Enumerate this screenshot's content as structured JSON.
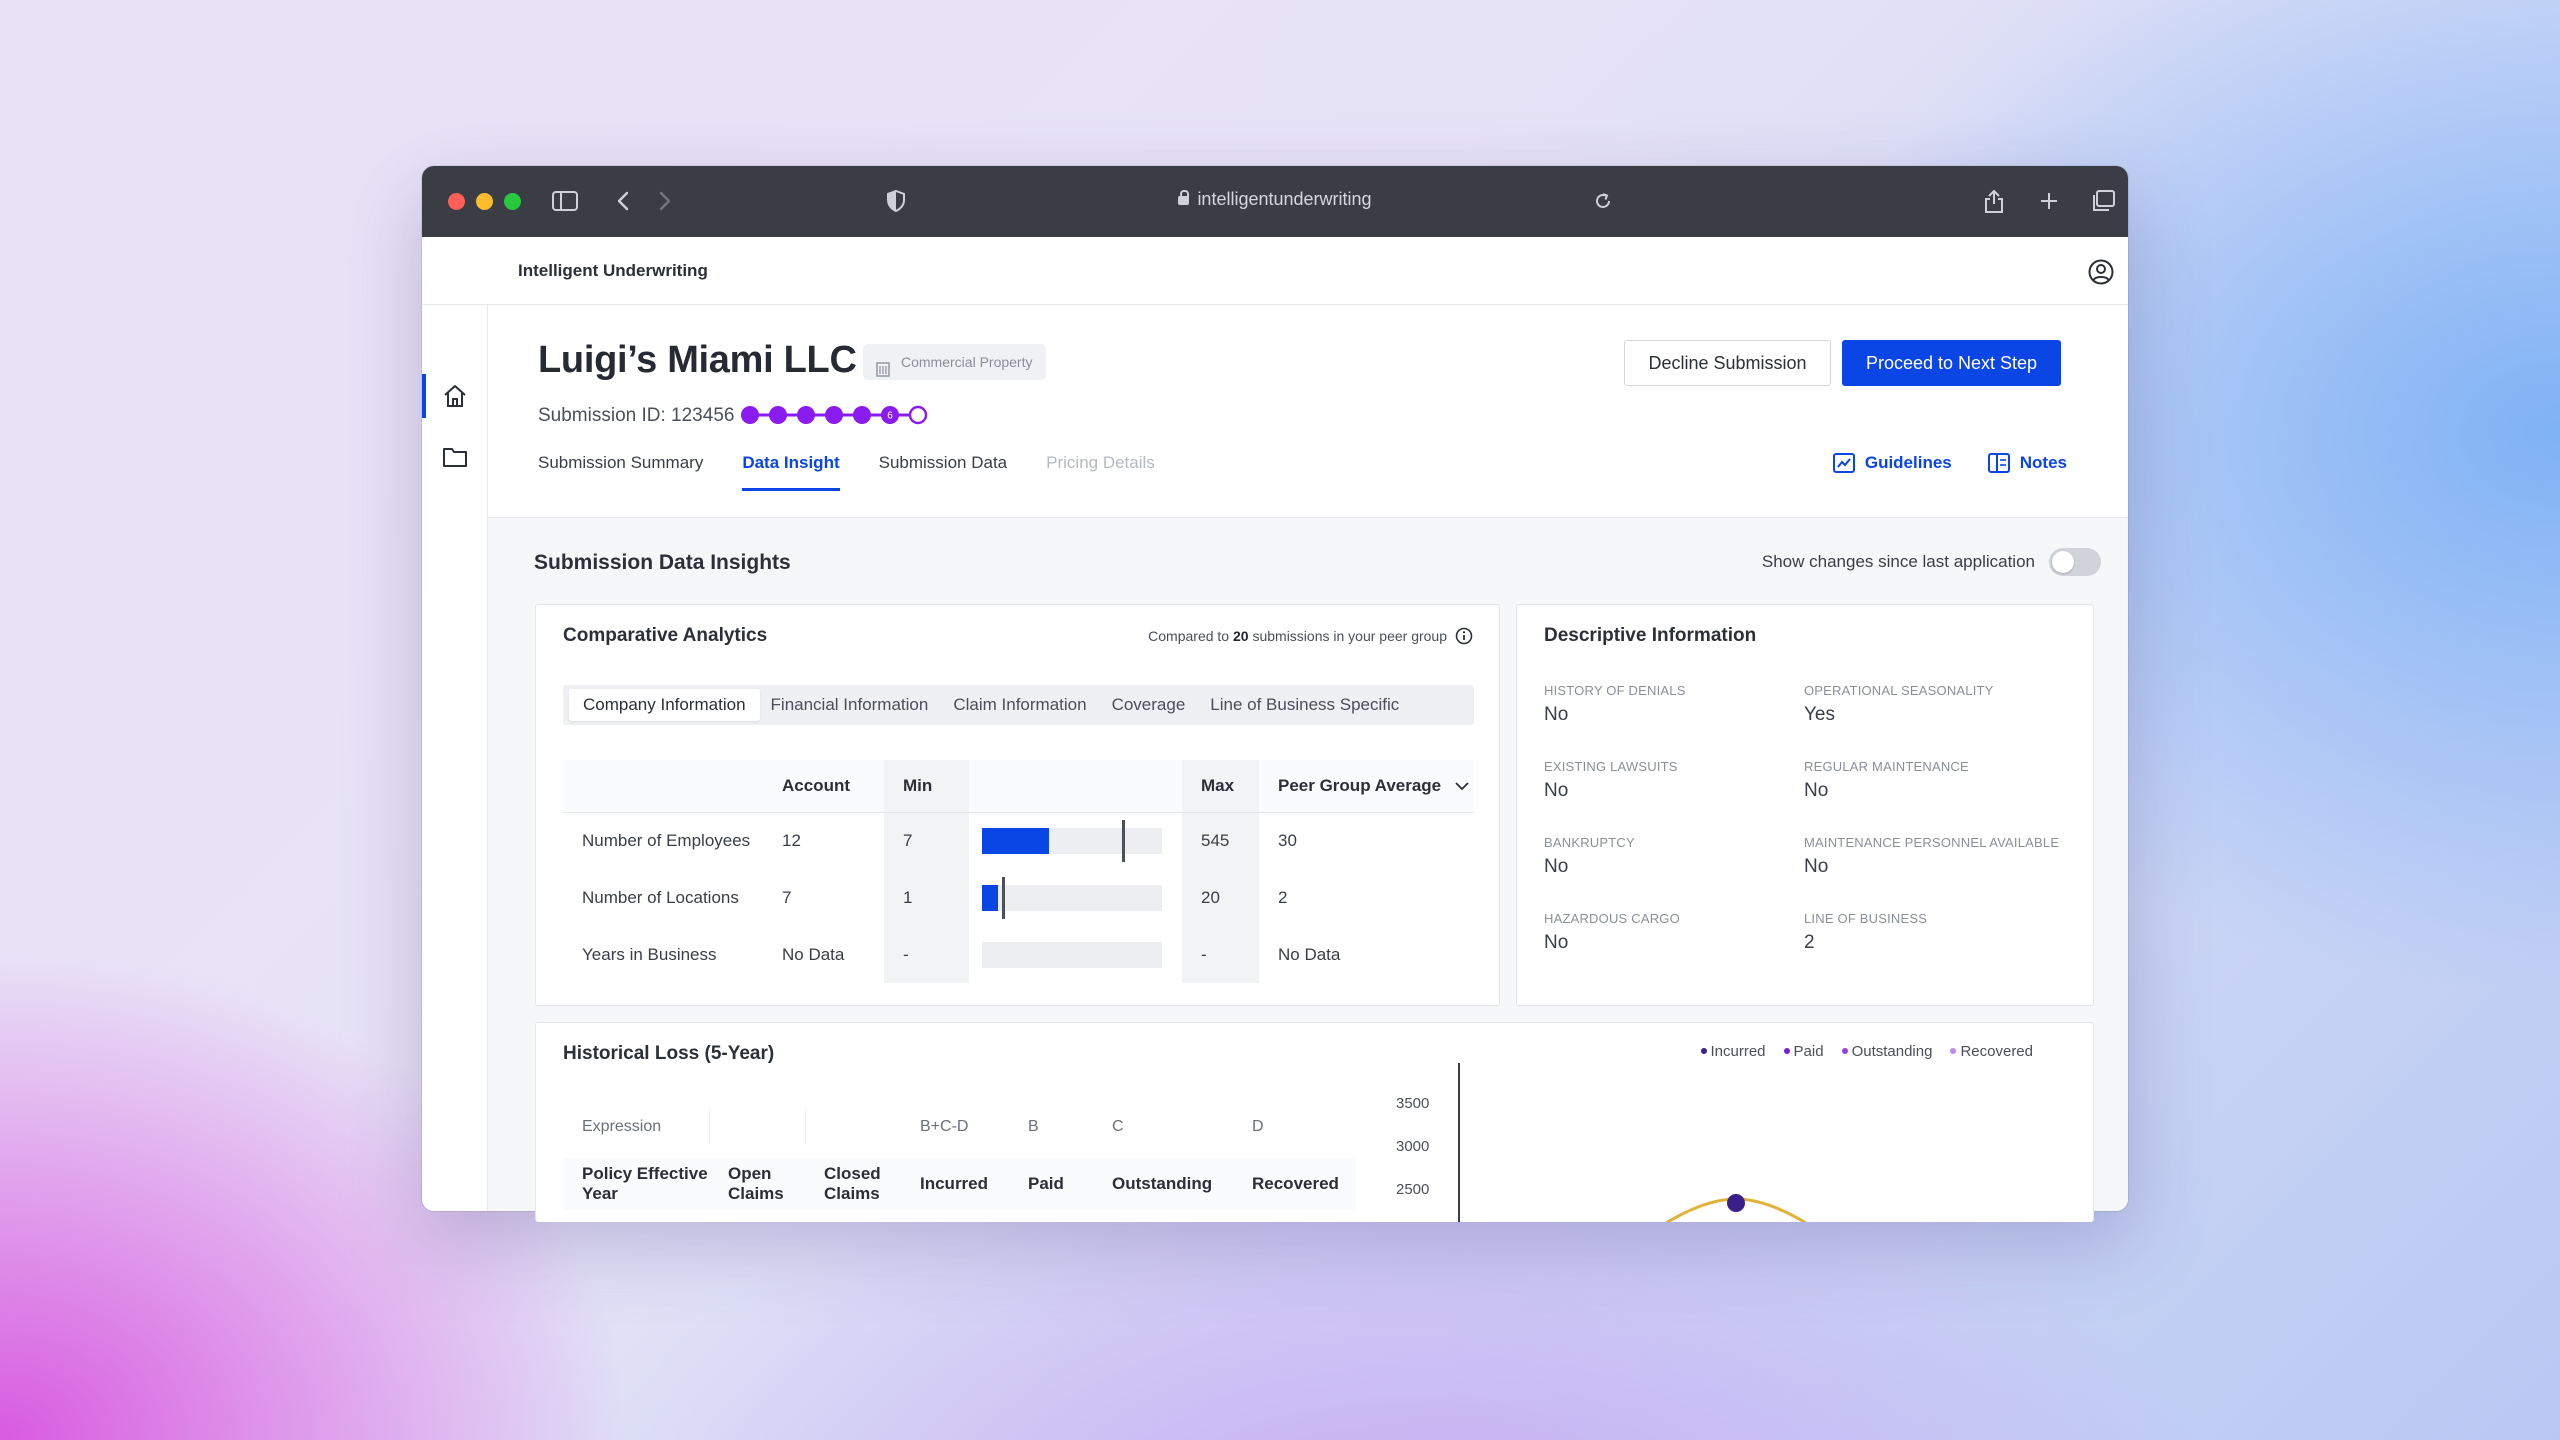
{
  "browser": {
    "url": "intelligentunderwriting",
    "traffic_colors": [
      "#ff5f57",
      "#febc2e",
      "#28c840"
    ]
  },
  "app": {
    "brand": "Intelligent Underwriting"
  },
  "submission": {
    "company_name": "Luigi’s Miami LLC",
    "line_of_business": "Commercial Property",
    "submission_id": "Submission ID: 123456",
    "progress_steps_total": 7,
    "progress_current_step": "6",
    "decline_label": "Decline Submission",
    "proceed_label": "Proceed to Next Step"
  },
  "tabs": [
    {
      "label": "Submission Summary",
      "state": "normal"
    },
    {
      "label": "Data Insight",
      "state": "active"
    },
    {
      "label": "Submission Data",
      "state": "normal"
    },
    {
      "label": "Pricing Details",
      "state": "disabled"
    }
  ],
  "links": {
    "guidelines": "Guidelines",
    "notes": "Notes"
  },
  "insights": {
    "title": "Submission Data Insights",
    "toggle_label": "Show changes since last application",
    "toggle_on": false
  },
  "comparative": {
    "title": "Comparative Analytics",
    "peer_prefix": "Compared to",
    "peer_count": "20",
    "peer_suffix": "submissions in your peer group",
    "subtabs": [
      "Company Information",
      "Financial Information",
      "Claim Information",
      "Coverage",
      "Line of Business Specific"
    ],
    "active_subtab": 0,
    "columns": [
      "Account",
      "Min",
      "Max",
      "Peer Group Average"
    ],
    "rows": [
      {
        "label": "Number of Employees",
        "account": "12",
        "min": "7",
        "max": "545",
        "avg": "30",
        "fill_fraction": 0.37,
        "marker_fraction": 0.78
      },
      {
        "label": "Number of Locations",
        "account": "7",
        "min": "1",
        "max": "20",
        "avg": "2",
        "fill_fraction": 0.09,
        "marker_fraction": 0.11
      },
      {
        "label": "Years in Business",
        "account": "No Data",
        "min": "-",
        "max": "-",
        "avg": "No Data",
        "fill_fraction": 0,
        "marker_fraction": null
      }
    ],
    "accent": "#0a45e6"
  },
  "descriptive": {
    "title": "Descriptive Information",
    "items": [
      {
        "label": "HISTORY OF DENIALS",
        "value": "No"
      },
      {
        "label": "OPERATIONAL SEASONALITY",
        "value": "Yes"
      },
      {
        "label": "EXISTING LAWSUITS",
        "value": "No"
      },
      {
        "label": "REGULAR MAINTENANCE",
        "value": "No"
      },
      {
        "label": "BANKRUPTCY",
        "value": "No"
      },
      {
        "label": "MAINTENANCE PERSONNEL AVAILABLE",
        "value": "No"
      },
      {
        "label": "HAZARDOUS CARGO",
        "value": "No"
      },
      {
        "label": "LINE OF BUSINESS",
        "value": "2"
      }
    ]
  },
  "historical": {
    "title": "Historical Loss (5-Year)",
    "legend": [
      {
        "label": "Incurred",
        "color": "#3a1f8a"
      },
      {
        "label": "Paid",
        "color": "#7a1fd6"
      },
      {
        "label": "Outstanding",
        "color": "#9a3de0"
      },
      {
        "label": "Recovered",
        "color": "#c08be8"
      }
    ],
    "expression_row": [
      "Expression",
      "",
      "",
      "B+C-D",
      "B",
      "C",
      "D"
    ],
    "header_row": [
      "Policy Effective Year",
      "Open Claims",
      "Closed Claims",
      "Incurred",
      "Paid",
      "Outstanding",
      "Recovered"
    ],
    "y_ticks": [
      "3500",
      "3000",
      "2500"
    ]
  }
}
